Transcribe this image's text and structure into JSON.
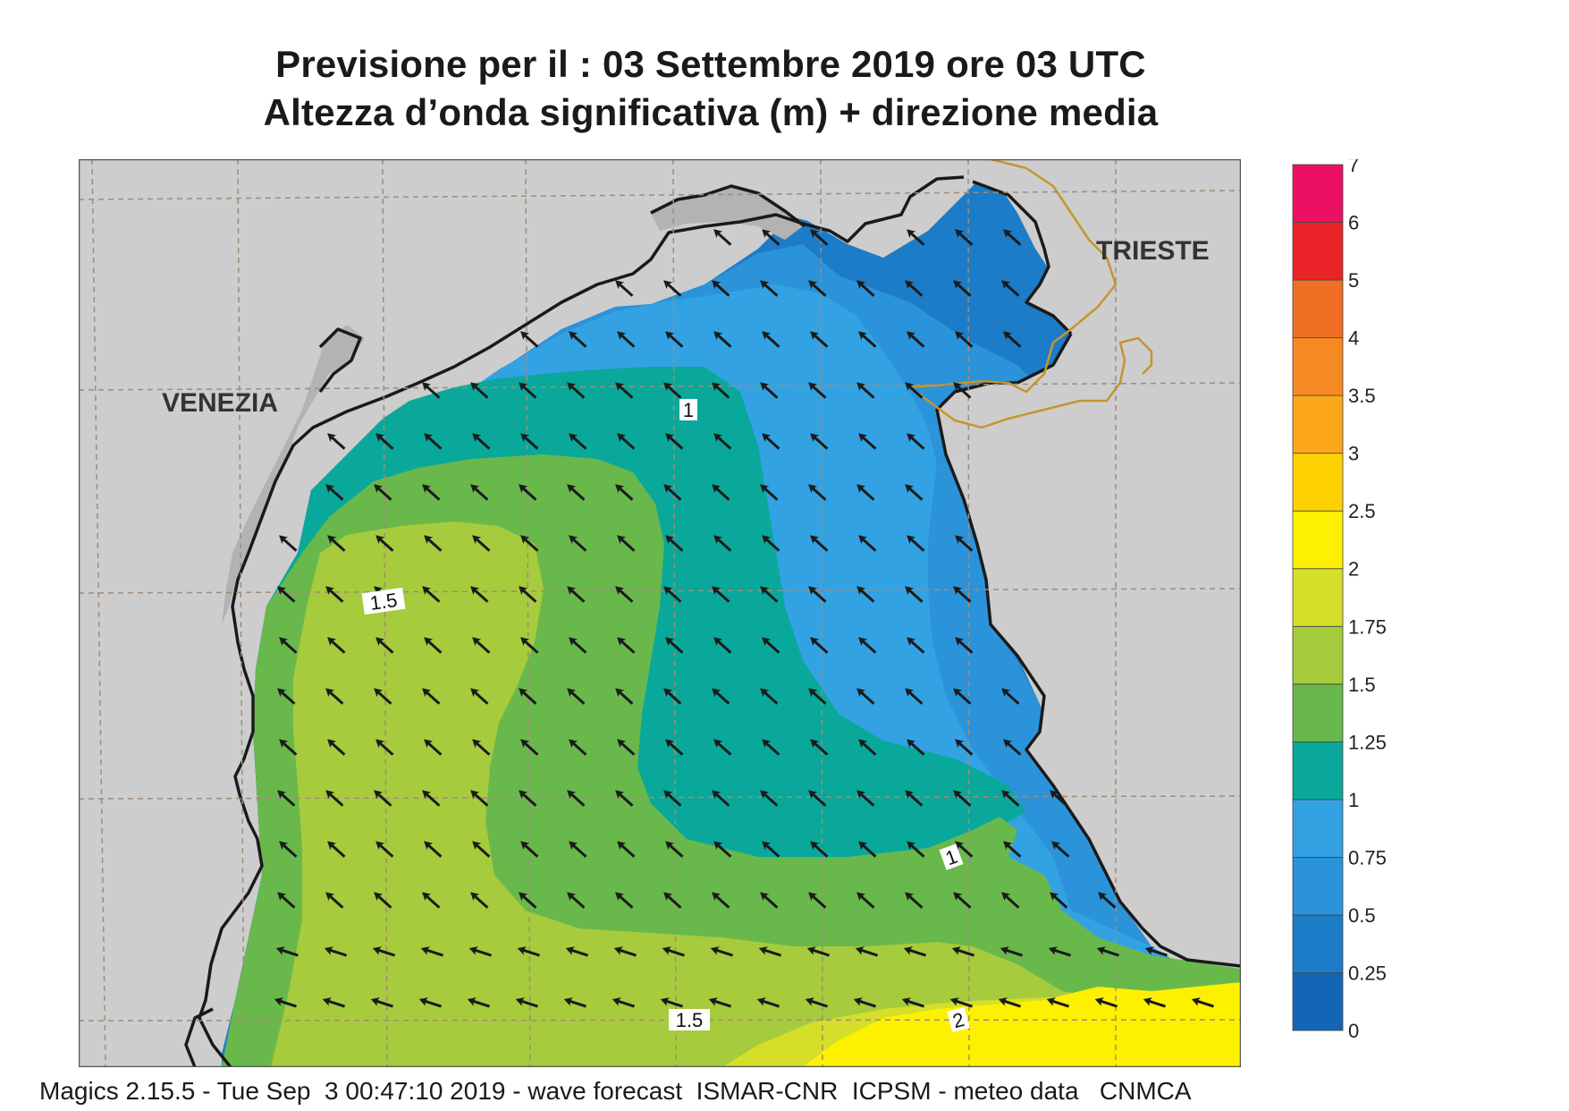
{
  "title_line1": "Previsione per il  :  03 Settembre 2019   ore 03 UTC",
  "title_line2": "Altezza d’onda significativa (m) + direzione media",
  "cities": [
    {
      "key": "venezia",
      "name": "VENEZIA"
    },
    {
      "key": "trieste",
      "name": "TRIESTE"
    }
  ],
  "contour_labels": [
    "1",
    "1.5",
    "1",
    "1.5",
    "2"
  ],
  "legend": {
    "levels": [
      "0",
      "0.25",
      "0.5",
      "0.75",
      "1",
      "1.25",
      "1.5",
      "1.75",
      "2",
      "2.5",
      "3",
      "3.5",
      "4",
      "5",
      "6",
      "7"
    ],
    "colors": [
      "#1565b6",
      "#1c7cc7",
      "#2b93d9",
      "#33a2e3",
      "#0aa89a",
      "#69b84b",
      "#a6cb3c",
      "#d5df2a",
      "#fdf100",
      "#fdd100",
      "#fca71b",
      "#f58a22",
      "#f06f24",
      "#e92328",
      "#ec1065"
    ]
  },
  "colors": {
    "land": "#cdcdcd",
    "coast": "#1a1a1a",
    "border": "#c5952d",
    "grid": "#a08c78",
    "arrow": "#1a1a1a"
  },
  "arrow_direction": "towards south-west",
  "footer": "Magics 2.15.5 - Tue Sep  3 00:47:10 2019 - wave forecast  ISMAR-CNR  ICPSM - meteo data   CNMCA"
}
